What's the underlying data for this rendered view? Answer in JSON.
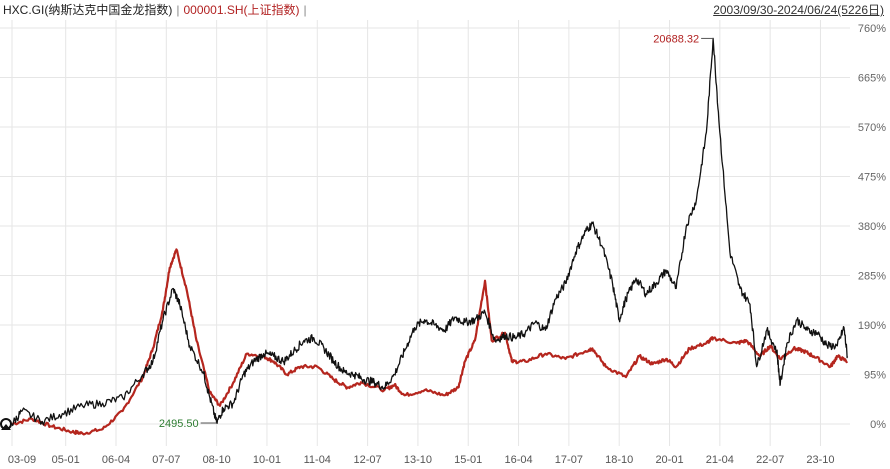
{
  "legend": {
    "series1_label": "HXC.GI(纳斯达克中国金龙指数)",
    "separator": "|",
    "series2_label": "000001.SH(上证指数)",
    "separator2": "|"
  },
  "date_range": "2003/09/30-2024/06/24(5226日)",
  "colors": {
    "series1": "#111111",
    "series2": "#b5261e",
    "grid": "#e6e6e6",
    "annotation_max": "#b22222",
    "annotation_min": "#2e7d32"
  },
  "chart_data": {
    "type": "line",
    "x_ticks": [
      "03-09",
      "05-01",
      "06-04",
      "07-07",
      "08-10",
      "10-01",
      "11-04",
      "12-07",
      "13-10",
      "15-01",
      "16-04",
      "17-07",
      "18-10",
      "20-01",
      "21-04",
      "22-07",
      "23-10"
    ],
    "y_ticks": [
      "760%",
      "665%",
      "570%",
      "475%",
      "380%",
      "285%",
      "190%",
      "95%",
      "0%"
    ],
    "ylim": [
      -10,
      760
    ],
    "y_axis_side": "right",
    "grid": true,
    "annotations": [
      {
        "text": "20688.32",
        "x": "2021-02",
        "y": 740,
        "series": "HXC.GI(纳斯达克中国金龙指数)"
      },
      {
        "text": "2495.50",
        "x": "2008-10",
        "y": 2,
        "series": "HXC.GI(纳斯达克中国金龙指数)"
      }
    ],
    "series": [
      {
        "name": "HXC.GI(纳斯达克中国金龙指数)",
        "color": "#111111",
        "points": [
          [
            "2003-09",
            0
          ],
          [
            "2003-12",
            25
          ],
          [
            "2004-06",
            5
          ],
          [
            "2004-12",
            20
          ],
          [
            "2005-06",
            35
          ],
          [
            "2005-12",
            40
          ],
          [
            "2006-06",
            50
          ],
          [
            "2006-12",
            95
          ],
          [
            "2007-03",
            120
          ],
          [
            "2007-06",
            200
          ],
          [
            "2007-09",
            260
          ],
          [
            "2007-11",
            230
          ],
          [
            "2008-02",
            150
          ],
          [
            "2008-06",
            100
          ],
          [
            "2008-08",
            50
          ],
          [
            "2008-10",
            2
          ],
          [
            "2008-12",
            30
          ],
          [
            "2009-03",
            40
          ],
          [
            "2009-06",
            95
          ],
          [
            "2009-09",
            120
          ],
          [
            "2009-12",
            135
          ],
          [
            "2010-03",
            130
          ],
          [
            "2010-06",
            120
          ],
          [
            "2010-09",
            140
          ],
          [
            "2010-12",
            160
          ],
          [
            "2011-03",
            165
          ],
          [
            "2011-06",
            145
          ],
          [
            "2011-09",
            120
          ],
          [
            "2011-12",
            100
          ],
          [
            "2012-03",
            95
          ],
          [
            "2012-06",
            85
          ],
          [
            "2012-09",
            80
          ],
          [
            "2012-12",
            70
          ],
          [
            "2013-03",
            95
          ],
          [
            "2013-06",
            140
          ],
          [
            "2013-09",
            185
          ],
          [
            "2013-12",
            200
          ],
          [
            "2014-03",
            190
          ],
          [
            "2014-06",
            180
          ],
          [
            "2014-09",
            205
          ],
          [
            "2014-12",
            195
          ],
          [
            "2015-03",
            200
          ],
          [
            "2015-06",
            215
          ],
          [
            "2015-09",
            160
          ],
          [
            "2015-12",
            170
          ],
          [
            "2016-03",
            165
          ],
          [
            "2016-06",
            175
          ],
          [
            "2016-09",
            195
          ],
          [
            "2016-12",
            180
          ],
          [
            "2017-03",
            240
          ],
          [
            "2017-06",
            270
          ],
          [
            "2017-09",
            330
          ],
          [
            "2017-12",
            370
          ],
          [
            "2018-02",
            385
          ],
          [
            "2018-05",
            340
          ],
          [
            "2018-08",
            270
          ],
          [
            "2018-10",
            200
          ],
          [
            "2018-12",
            240
          ],
          [
            "2019-03",
            280
          ],
          [
            "2019-06",
            250
          ],
          [
            "2019-09",
            270
          ],
          [
            "2019-12",
            295
          ],
          [
            "2020-03",
            260
          ],
          [
            "2020-06",
            380
          ],
          [
            "2020-09",
            430
          ],
          [
            "2020-12",
            560
          ],
          [
            "2021-02",
            740
          ],
          [
            "2021-04",
            560
          ],
          [
            "2021-07",
            330
          ],
          [
            "2021-10",
            260
          ],
          [
            "2022-01",
            230
          ],
          [
            "2022-03",
            110
          ],
          [
            "2022-06",
            180
          ],
          [
            "2022-09",
            140
          ],
          [
            "2022-10",
            75
          ],
          [
            "2022-12",
            155
          ],
          [
            "2023-03",
            200
          ],
          [
            "2023-06",
            180
          ],
          [
            "2023-09",
            175
          ],
          [
            "2023-12",
            150
          ],
          [
            "2024-03",
            150
          ],
          [
            "2024-05",
            185
          ],
          [
            "2024-06",
            130
          ]
        ]
      },
      {
        "name": "000001.SH(上证指数)",
        "color": "#b5261e",
        "points": [
          [
            "2003-09",
            0
          ],
          [
            "2004-03",
            10
          ],
          [
            "2004-09",
            -5
          ],
          [
            "2005-03",
            -15
          ],
          [
            "2005-06",
            -18
          ],
          [
            "2005-12",
            -10
          ],
          [
            "2006-06",
            25
          ],
          [
            "2006-12",
            90
          ],
          [
            "2007-03",
            145
          ],
          [
            "2007-06",
            220
          ],
          [
            "2007-08",
            300
          ],
          [
            "2007-10",
            335
          ],
          [
            "2008-01",
            260
          ],
          [
            "2008-04",
            160
          ],
          [
            "2008-08",
            60
          ],
          [
            "2008-11",
            35
          ],
          [
            "2009-03",
            80
          ],
          [
            "2009-07",
            135
          ],
          [
            "2009-12",
            130
          ],
          [
            "2010-03",
            120
          ],
          [
            "2010-07",
            95
          ],
          [
            "2010-11",
            110
          ],
          [
            "2011-04",
            110
          ],
          [
            "2011-09",
            85
          ],
          [
            "2012-01",
            70
          ],
          [
            "2012-05",
            80
          ],
          [
            "2012-12",
            65
          ],
          [
            "2013-03",
            75
          ],
          [
            "2013-06",
            55
          ],
          [
            "2013-12",
            65
          ],
          [
            "2014-06",
            55
          ],
          [
            "2014-10",
            70
          ],
          [
            "2014-12",
            120
          ],
          [
            "2015-03",
            160
          ],
          [
            "2015-06",
            275
          ],
          [
            "2015-08",
            160
          ],
          [
            "2015-12",
            175
          ],
          [
            "2016-02",
            120
          ],
          [
            "2016-06",
            120
          ],
          [
            "2016-12",
            135
          ],
          [
            "2017-06",
            125
          ],
          [
            "2017-12",
            140
          ],
          [
            "2018-02",
            145
          ],
          [
            "2018-06",
            110
          ],
          [
            "2018-12",
            90
          ],
          [
            "2019-04",
            130
          ],
          [
            "2019-08",
            115
          ],
          [
            "2019-12",
            125
          ],
          [
            "2020-03",
            110
          ],
          [
            "2020-07",
            145
          ],
          [
            "2020-12",
            155
          ],
          [
            "2021-02",
            165
          ],
          [
            "2021-09",
            155
          ],
          [
            "2021-12",
            160
          ],
          [
            "2022-04",
            130
          ],
          [
            "2022-07",
            150
          ],
          [
            "2022-10",
            125
          ],
          [
            "2023-02",
            145
          ],
          [
            "2023-05",
            140
          ],
          [
            "2023-08",
            130
          ],
          [
            "2024-01",
            110
          ],
          [
            "2024-03",
            130
          ],
          [
            "2024-06",
            120
          ]
        ]
      }
    ]
  }
}
